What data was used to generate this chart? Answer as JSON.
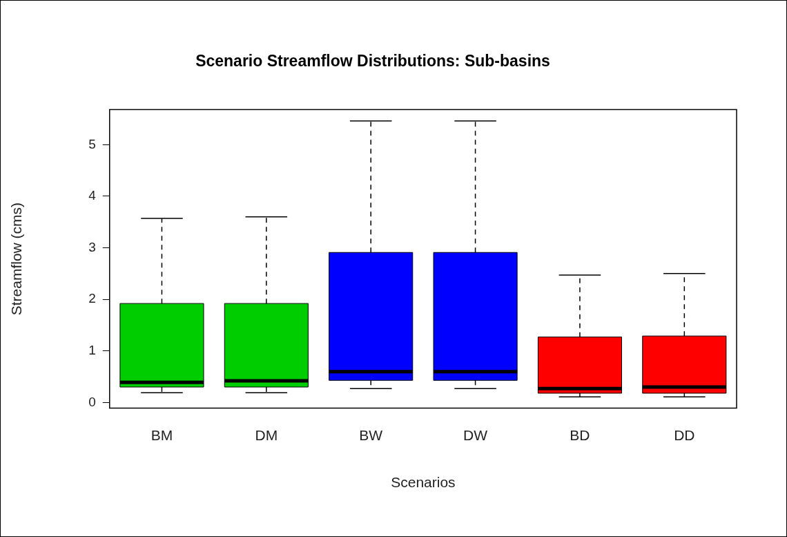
{
  "chart_data": {
    "type": "box",
    "title": "Scenario Streamflow Distributions: Sub-basins",
    "xlabel": "Scenarios",
    "ylabel": "Streamflow (cms)",
    "categories": [
      "BM",
      "DM",
      "BW",
      "DW",
      "BD",
      "DD"
    ],
    "colors": [
      "#00cd00",
      "#00cd00",
      "#0000ff",
      "#0000ff",
      "#ff0000",
      "#ff0000"
    ],
    "boxes": [
      {
        "low": 0.19,
        "q1": 0.3,
        "median": 0.39,
        "q3": 1.92,
        "high": 3.57
      },
      {
        "low": 0.19,
        "q1": 0.3,
        "median": 0.42,
        "q3": 1.92,
        "high": 3.6
      },
      {
        "low": 0.27,
        "q1": 0.43,
        "median": 0.6,
        "q3": 2.91,
        "high": 5.46
      },
      {
        "low": 0.27,
        "q1": 0.43,
        "median": 0.6,
        "q3": 2.91,
        "high": 5.46
      },
      {
        "low": 0.11,
        "q1": 0.18,
        "median": 0.27,
        "q3": 1.27,
        "high": 2.47
      },
      {
        "low": 0.11,
        "q1": 0.18,
        "median": 0.3,
        "q3": 1.29,
        "high": 2.5
      }
    ],
    "ylim": [
      -0.11,
      5.68
    ],
    "yticks": [
      0,
      1,
      2,
      3,
      4,
      5
    ]
  }
}
